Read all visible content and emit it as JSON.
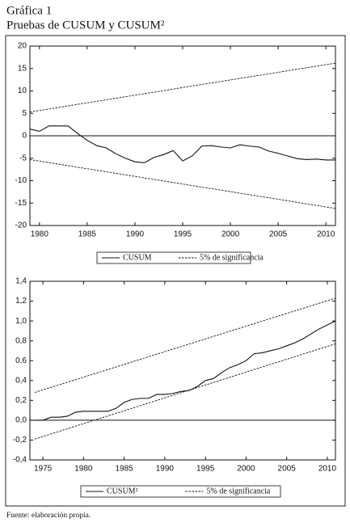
{
  "figure": {
    "label": "Gráfica 1",
    "title": "Pruebas de CUSUM y CUSUM²",
    "source": "Fuente: elaboración propia."
  },
  "chart_data": [
    {
      "type": "line",
      "x": [
        1979,
        1980,
        1981,
        1982,
        1983,
        1984,
        1985,
        1986,
        1987,
        1988,
        1989,
        1990,
        1991,
        1992,
        1993,
        1994,
        1995,
        1996,
        1997,
        1998,
        1999,
        2000,
        2001,
        2002,
        2003,
        2004,
        2005,
        2006,
        2007,
        2008,
        2009,
        2010,
        2011
      ],
      "xlim": [
        1979,
        2011
      ],
      "xticks": [
        1980,
        1985,
        1990,
        1995,
        2000,
        2005,
        2010
      ],
      "ylim": [
        -20,
        20
      ],
      "yticks": [
        -20,
        -15,
        -10,
        -5,
        0,
        5,
        10,
        15,
        20
      ],
      "zero_line": true,
      "series": [
        {
          "name": "CUSUM",
          "color": "#111111",
          "style": "solid",
          "values": [
            1.5,
            1.0,
            2.2,
            2.2,
            2.2,
            0.5,
            -1.0,
            -2.2,
            -2.7,
            -4.0,
            -5.0,
            -5.8,
            -6.0,
            -4.8,
            -4.2,
            -3.3,
            -5.6,
            -4.5,
            -2.3,
            -2.2,
            -2.5,
            -2.7,
            -2.0,
            -2.3,
            -2.5,
            -3.4,
            -3.9,
            -4.5,
            -5.1,
            -5.3,
            -5.2,
            -5.4,
            -5.4
          ]
        },
        {
          "name": "5% de significancia",
          "color": "#111111",
          "style": "dashed",
          "x": [
            1979,
            2011
          ],
          "values": [
            5.3,
            16.2
          ],
          "lower_values": [
            -5.3,
            -16.2
          ]
        }
      ]
    },
    {
      "type": "line",
      "x": [
        1974,
        1975,
        1976,
        1977,
        1978,
        1979,
        1980,
        1981,
        1982,
        1983,
        1984,
        1985,
        1986,
        1987,
        1988,
        1989,
        1990,
        1991,
        1992,
        1993,
        1994,
        1995,
        1996,
        1997,
        1998,
        1999,
        2000,
        2001,
        2002,
        2003,
        2004,
        2005,
        2006,
        2007,
        2008,
        2009,
        2010,
        2011
      ],
      "xlim": [
        1973.4,
        2011
      ],
      "xticks": [
        1975,
        1980,
        1985,
        1990,
        1995,
        2000,
        2005,
        2010
      ],
      "ylim": [
        -0.4,
        1.4
      ],
      "yticks": [
        {
          "value": -0.4,
          "label": "-0,4"
        },
        {
          "value": -0.2,
          "label": "-0,2"
        },
        {
          "value": 0,
          "label": "0,0"
        },
        {
          "value": 0.2,
          "label": "0,2"
        },
        {
          "value": 0.4,
          "label": "0,4"
        },
        {
          "value": 0.6,
          "label": "0,6"
        },
        {
          "value": 0.8,
          "label": "0,8"
        },
        {
          "value": 1.0,
          "label": "1,0"
        },
        {
          "value": 1.2,
          "label": "1,2"
        },
        {
          "value": 1.4,
          "label": "1,4"
        }
      ],
      "zero_line": true,
      "series": [
        {
          "name": "CUSUM²",
          "color": "#111111",
          "style": "solid",
          "values": [
            0.0,
            0.0,
            0.03,
            0.03,
            0.04,
            0.08,
            0.09,
            0.09,
            0.09,
            0.09,
            0.12,
            0.18,
            0.21,
            0.22,
            0.22,
            0.26,
            0.26,
            0.27,
            0.29,
            0.3,
            0.34,
            0.4,
            0.42,
            0.48,
            0.53,
            0.56,
            0.6,
            0.67,
            0.68,
            0.7,
            0.72,
            0.75,
            0.78,
            0.82,
            0.87,
            0.92,
            0.96,
            1.0
          ]
        },
        {
          "name": "5% de significancia",
          "color": "#111111",
          "style": "dashed",
          "x": [
            1974,
            2011
          ],
          "values": [
            0.28,
            1.23
          ],
          "lower_values": [
            -0.19,
            0.77
          ]
        }
      ]
    }
  ]
}
